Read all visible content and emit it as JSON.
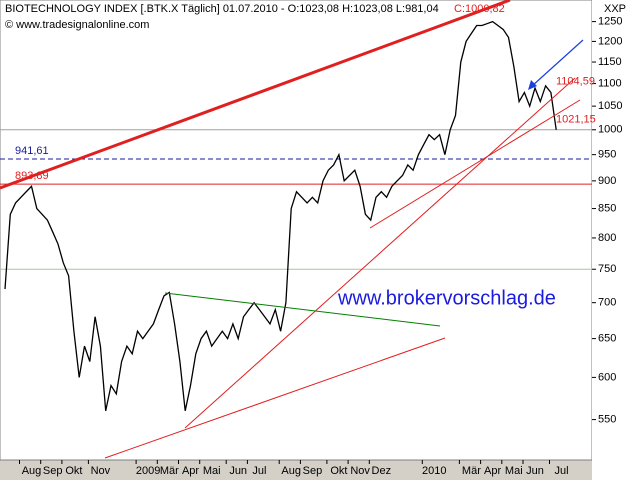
{
  "chart_data": {
    "type": "line",
    "title": "BIOTECHNOLOGY INDEX [.BTK.X  Täglich] 01.07.2010 - O:1023,08 H:1023,08 L:981,04",
    "title_close": "C:1000,82",
    "source": "© www.tradesignalonline.com",
    "unit": "XXP",
    "watermark": "www.brokervorschlag.de",
    "log_scale": true,
    "color": "#000000",
    "categories": [
      null,
      null,
      null,
      null,
      null,
      "Aug",
      null,
      null,
      null,
      "Sep",
      null,
      null,
      null,
      "Okt",
      null,
      null,
      null,
      null,
      "Nov",
      null,
      null,
      null,
      null,
      null,
      null,
      null,
      null,
      "2009",
      null,
      null,
      null,
      "Mär",
      null,
      null,
      null,
      "Apr",
      null,
      null,
      null,
      "Mai",
      null,
      null,
      null,
      null,
      "Jun",
      null,
      null,
      null,
      "Jul",
      null,
      null,
      null,
      null,
      null,
      "Aug",
      null,
      null,
      null,
      "Sep",
      null,
      null,
      null,
      null,
      "Okt",
      null,
      null,
      null,
      "Nov",
      null,
      null,
      null,
      "Dez",
      null,
      null,
      null,
      null,
      null,
      null,
      null,
      null,
      null,
      "2010",
      null,
      null,
      null,
      null,
      null,
      null,
      "Mär",
      null,
      null,
      null,
      "Apr",
      null,
      null,
      null,
      "Mai",
      null,
      null,
      null,
      "Jun",
      null,
      null,
      null,
      null,
      "Jul"
    ],
    "values": [
      720,
      840,
      860,
      870,
      880,
      890,
      850,
      840,
      830,
      810,
      790,
      760,
      740,
      660,
      600,
      640,
      620,
      680,
      640,
      560,
      590,
      580,
      620,
      640,
      630,
      660,
      650,
      660,
      670,
      690,
      710,
      715,
      670,
      620,
      560,
      590,
      630,
      650,
      660,
      640,
      650,
      660,
      650,
      670,
      650,
      680,
      690,
      700,
      690,
      680,
      670,
      690,
      660,
      700,
      850,
      880,
      870,
      860,
      870,
      860,
      900,
      920,
      930,
      950,
      900,
      910,
      920,
      890,
      840,
      830,
      870,
      880,
      870,
      890,
      900,
      910,
      930,
      920,
      950,
      970,
      990,
      980,
      990,
      950,
      1000,
      1030,
      1150,
      1200,
      1220,
      1240,
      1240,
      1245,
      1250,
      1240,
      1230,
      1210,
      1140,
      1060,
      1080,
      1050,
      1090,
      1060,
      1095,
      1080,
      1000,
      null
    ],
    "ylim": [
      506,
      1307
    ],
    "yticks": [
      550,
      600,
      650,
      700,
      750,
      800,
      850,
      900,
      950,
      1000,
      1050,
      1100,
      1150,
      1200,
      1250
    ],
    "hlines": [
      {
        "value": 941.61,
        "label": "941,61",
        "color": "#1a1aa0",
        "style": "dashed"
      },
      {
        "value": 893.89,
        "label": "893,89",
        "color": "#e02020",
        "style": "solid"
      },
      {
        "value": 1000,
        "color": "#a0a0a0",
        "style": "solid"
      },
      {
        "value": 750,
        "color": "#a0c8a0",
        "style": "solid"
      }
    ],
    "annotations": [
      {
        "text": "1104,59",
        "value": 1104.59
      },
      {
        "text": "1021,15",
        "value": 1021.15
      }
    ]
  }
}
